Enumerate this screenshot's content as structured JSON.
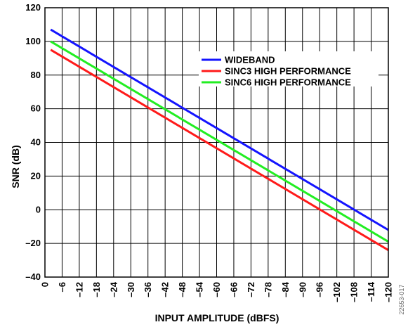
{
  "chart_data": {
    "type": "line",
    "xlabel": "INPUT AMPLITUDE (dBFS)",
    "ylabel": "SNR (dB)",
    "xlim": [
      0,
      -120
    ],
    "ylim": [
      -40,
      120
    ],
    "x_ticks": [
      0,
      -6,
      -12,
      -18,
      -24,
      -30,
      -36,
      -42,
      -48,
      -54,
      -60,
      -66,
      -72,
      -78,
      -84,
      -90,
      -96,
      -102,
      -108,
      -114,
      -120
    ],
    "x_tick_labels": [
      "0",
      "–6",
      "–12",
      "–18",
      "–24",
      "–30",
      "–36",
      "–42",
      "–48",
      "–54",
      "–60",
      "–66",
      "–72",
      "–78",
      "–84",
      "–90",
      "–96",
      "–102",
      "–108",
      "–114",
      "–120"
    ],
    "y_ticks": [
      -40,
      -20,
      0,
      20,
      40,
      60,
      80,
      100,
      120
    ],
    "y_tick_labels": [
      "–40",
      "–20",
      "0",
      "20",
      "40",
      "60",
      "80",
      "100",
      "120"
    ],
    "grid": true,
    "legend_position": "top-right",
    "series": [
      {
        "name": "WIDEBAND",
        "color": "#1414ff",
        "x": [
          -2,
          -120
        ],
        "y": [
          107,
          -12
        ]
      },
      {
        "name": "SINC3 HIGH PERFORMANCE",
        "color": "#ff1a1a",
        "x": [
          -2,
          -120
        ],
        "y": [
          95,
          -24
        ]
      },
      {
        "name": "SINC6 HIGH PERFORMANCE",
        "color": "#22ee22",
        "x": [
          -2,
          -120
        ],
        "y": [
          100,
          -19
        ]
      }
    ],
    "figure_id": "22653-017"
  }
}
